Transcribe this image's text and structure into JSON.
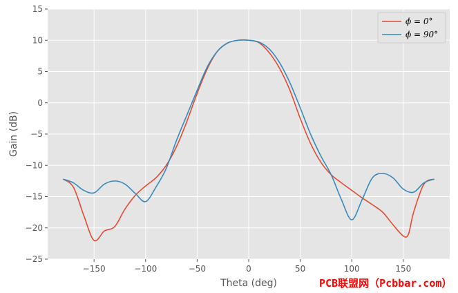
{
  "chart_data": {
    "type": "line",
    "title": "",
    "xlabel": "Theta (deg)",
    "ylabel": "Gain (dB)",
    "xlim": [
      -195,
      195
    ],
    "ylim": [
      -25,
      15
    ],
    "xticks": [
      -150,
      -100,
      -50,
      0,
      50,
      100,
      150
    ],
    "xtick_labels": [
      "−150",
      "−100",
      "−50",
      "0",
      "50",
      "100",
      "150"
    ],
    "yticks": [
      -25,
      -20,
      -15,
      -10,
      -5,
      0,
      5,
      10,
      15
    ],
    "ytick_labels": [
      "−25",
      "−20",
      "−15",
      "−10",
      "−5",
      "0",
      "5",
      "10",
      "15"
    ],
    "grid": true,
    "legend_position": "top-right",
    "series": [
      {
        "name": "ϕ = 0°",
        "color": "#E24A33",
        "x": [
          -180,
          -170,
          -160,
          -150,
          -140,
          -130,
          -120,
          -110,
          -100,
          -90,
          -80,
          -70,
          -60,
          -50,
          -40,
          -30,
          -20,
          -10,
          0,
          10,
          20,
          30,
          40,
          50,
          60,
          70,
          80,
          90,
          100,
          110,
          120,
          130,
          140,
          150,
          155,
          160,
          170,
          180
        ],
        "y": [
          -12.2,
          -13.5,
          -18,
          -22,
          -20.5,
          -19.8,
          -17,
          -14.8,
          -13.3,
          -12,
          -10,
          -7,
          -3,
          1.5,
          5.5,
          8.3,
          9.6,
          10,
          10,
          9.6,
          8,
          5.5,
          2,
          -2.5,
          -6.5,
          -9.5,
          -11.5,
          -12.8,
          -14,
          -15.2,
          -16.3,
          -17.5,
          -19.5,
          -21.3,
          -21,
          -17.5,
          -13,
          -12.2
        ]
      },
      {
        "name": "ϕ = 90°",
        "color": "#348ABD",
        "x": [
          -180,
          -170,
          -160,
          -150,
          -140,
          -130,
          -120,
          -110,
          -100,
          -90,
          -80,
          -70,
          -60,
          -50,
          -40,
          -30,
          -20,
          -10,
          0,
          10,
          20,
          30,
          40,
          50,
          60,
          70,
          80,
          90,
          100,
          110,
          120,
          130,
          140,
          150,
          160,
          170,
          180
        ],
        "y": [
          -12.2,
          -12.8,
          -14,
          -14.4,
          -13,
          -12.5,
          -13,
          -14.5,
          -15.8,
          -13.5,
          -10.5,
          -6,
          -2,
          2,
          5.8,
          8.3,
          9.6,
          10,
          10,
          9.7,
          8.6,
          6.4,
          3.2,
          -0.8,
          -5,
          -8.5,
          -11.5,
          -15.5,
          -18.7,
          -15.5,
          -12,
          -11.3,
          -12,
          -13.8,
          -14.3,
          -12.8,
          -12.2
        ]
      }
    ]
  },
  "watermark": "PCB联盟网（Pcbbar.com）"
}
